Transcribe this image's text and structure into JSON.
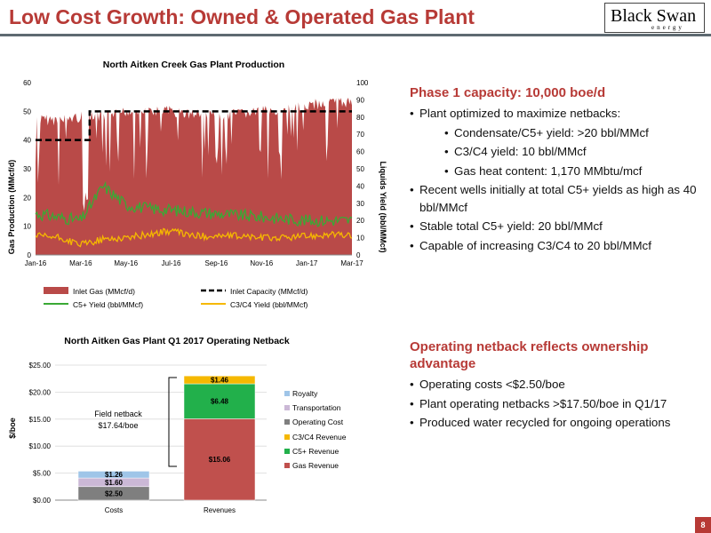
{
  "slide": {
    "title": "Low Cost Growth: Owned & Operated Gas Plant",
    "logo_text": "Black Swan",
    "logo_sub": "energy",
    "page_number": "8"
  },
  "colors": {
    "accent": "#b73a36",
    "gas_fill": "#b94a48",
    "c5_line": "#3aa935",
    "c3c4_line": "#f5b800",
    "capacity_line": "#000000",
    "royalty": "#9fc5e8",
    "transportation": "#cbb8d6",
    "operating_cost": "#7f7f7f",
    "c3c4_rev": "#f5b800",
    "c5_rev": "#22b04b",
    "gas_rev": "#c0504d"
  },
  "chart_data": [
    {
      "type": "area",
      "title": "North Aitken Creek Gas Plant Production",
      "ylabel": "Gas Production (MMcf/d)",
      "ylabel_right": "Liquids Yield (bbl/MMcf)",
      "ylim": [
        0,
        60
      ],
      "ylim_right": [
        0,
        100
      ],
      "yticks": [
        "0",
        "10",
        "20",
        "30",
        "40",
        "50",
        "60"
      ],
      "yticks_right": [
        "0",
        "10",
        "20",
        "30",
        "40",
        "50",
        "60",
        "70",
        "80",
        "90",
        "100"
      ],
      "xticks": [
        "Jan-16",
        "Mar-16",
        "May-16",
        "Jul-16",
        "Sep-16",
        "Nov-16",
        "Jan-17",
        "Mar-17"
      ],
      "legend_placement": "bottom",
      "series": [
        {
          "name": "Inlet Gas (MMcf/d)",
          "axis": "left",
          "style": "area",
          "x": [
            "Jan-16",
            "Feb-16",
            "Mar-16",
            "Apr-16",
            "May-16",
            "Jun-16",
            "Jul-16",
            "Aug-16",
            "Sep-16",
            "Oct-16",
            "Nov-16",
            "Dec-16",
            "Jan-17",
            "Feb-17",
            "Mar-17"
          ],
          "values": [
            49,
            49,
            50,
            50,
            52,
            52,
            52,
            51,
            51,
            51,
            52,
            52,
            54,
            55,
            55
          ]
        },
        {
          "name": "Inlet Capacity (MMcf/d)",
          "axis": "left",
          "style": "dashed",
          "x": [
            "Jan-16",
            "Mar-16",
            "Mar-16",
            "Mar-17"
          ],
          "values": [
            40,
            40,
            50,
            50
          ]
        },
        {
          "name": "C5+ Yield (bbl/MMcf)",
          "axis": "right",
          "style": "line",
          "x": [
            "Jan-16",
            "Feb-16",
            "Mar-16",
            "Apr-16",
            "May-16",
            "Jun-16",
            "Jul-16",
            "Aug-16",
            "Sep-16",
            "Oct-16",
            "Nov-16",
            "Dec-16",
            "Jan-17",
            "Feb-17",
            "Mar-17"
          ],
          "values": [
            24,
            22,
            20,
            40,
            29,
            27,
            26,
            25,
            24,
            23,
            22,
            21,
            20,
            20,
            20
          ]
        },
        {
          "name": "C3/C4 Yield (bbl/MMcf)",
          "axis": "right",
          "style": "line",
          "x": [
            "Jan-16",
            "Feb-16",
            "Mar-16",
            "Apr-16",
            "May-16",
            "Jun-16",
            "Jul-16",
            "Aug-16",
            "Sep-16",
            "Oct-16",
            "Nov-16",
            "Dec-16",
            "Jan-17",
            "Feb-17",
            "Mar-17"
          ],
          "values": [
            11,
            10,
            6,
            9,
            10,
            12,
            14,
            11,
            11,
            11,
            10,
            10,
            11,
            12,
            11
          ]
        }
      ]
    },
    {
      "type": "bar",
      "stacked": true,
      "title": "North Aitken Gas Plant Q1 2017 Operating Netback",
      "ylabel": "$/boe",
      "ylim": [
        0,
        25
      ],
      "yticks": [
        "$0.00",
        "$5.00",
        "$10.00",
        "$15.00",
        "$20.00",
        "$25.00"
      ],
      "categories": [
        "Costs",
        "Revenues"
      ],
      "legend_placement": "right",
      "series": [
        {
          "name": "Royalty",
          "values": [
            1.26,
            0
          ]
        },
        {
          "name": "Transportation",
          "values": [
            1.6,
            0
          ]
        },
        {
          "name": "Operating Cost",
          "values": [
            2.5,
            0
          ]
        },
        {
          "name": "C3/C4 Revenue",
          "values": [
            0,
            1.46
          ]
        },
        {
          "name": "C5+ Revenue",
          "values": [
            0,
            6.48
          ]
        },
        {
          "name": "Gas Revenue",
          "values": [
            0,
            15.06
          ]
        }
      ],
      "data_labels": {
        "royalty": "$1.26",
        "transportation": "$1.60",
        "operating_cost": "$2.50",
        "c3c4": "$1.46",
        "c5": "$6.48",
        "gas": "$15.06"
      },
      "annotation": [
        "Field netback",
        "$17.64/boe"
      ]
    }
  ],
  "phase1": {
    "heading": "Phase 1 capacity: 10,000 boe/d",
    "b1": "Plant optimized to maximize netbacks:",
    "s1": "Condensate/C5+ yield: >20 bbl/MMcf",
    "s2": "C3/C4 yield: 10 bbl/MMcf",
    "s3": "Gas heat content: 1,170 MMbtu/mcf",
    "b2": "Recent wells initially at total C5+ yields as high as 40 bbl/MMcf",
    "b3": "Stable total C5+ yield: 20 bbl/MMcf",
    "b4": "Capable of increasing C3/C4 to 20 bbl/MMcf"
  },
  "netback": {
    "heading": "Operating netback reflects ownership advantage",
    "b1": "Operating costs <$2.50/boe",
    "b2": "Plant operating netbacks >$17.50/boe in Q1/17",
    "b3": "Produced water recycled for ongoing operations"
  }
}
